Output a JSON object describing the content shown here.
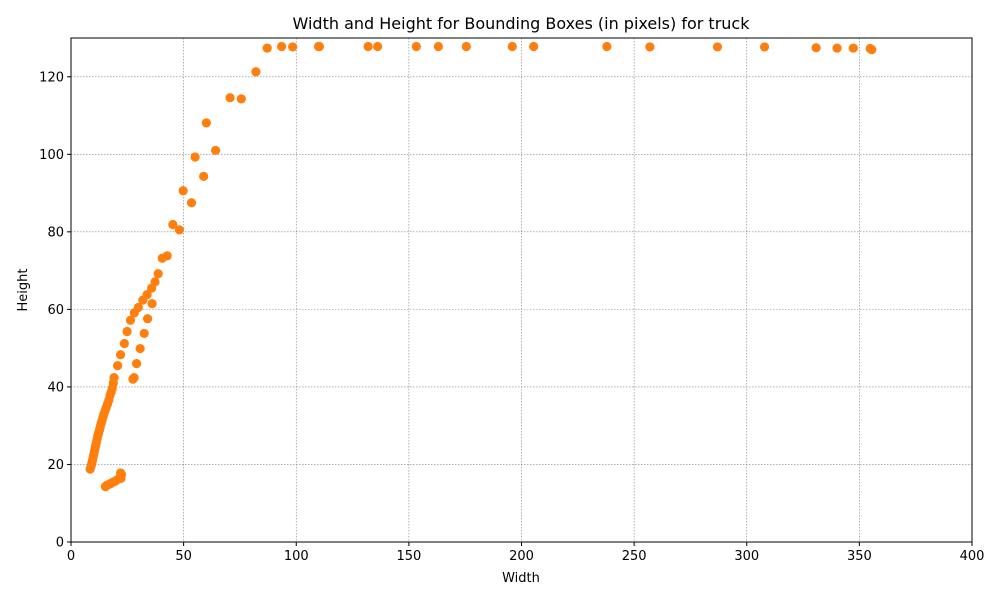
{
  "chart_data": {
    "type": "scatter",
    "title": "Width and Height for Bounding Boxes (in pixels) for truck",
    "xlabel": "Width",
    "ylabel": "Height",
    "xlim": [
      0,
      400
    ],
    "ylim": [
      0,
      130
    ],
    "xticks": [
      0,
      50,
      100,
      150,
      200,
      250,
      300,
      350,
      400
    ],
    "yticks": [
      0,
      20,
      40,
      60,
      80,
      100,
      120
    ],
    "grid": true,
    "marker_color": "#ff7f0e",
    "points": [
      [
        8.5,
        18.8
      ],
      [
        8.9,
        19.5
      ],
      [
        9.2,
        20.2
      ],
      [
        9.5,
        21.0
      ],
      [
        9.8,
        21.8
      ],
      [
        10.1,
        22.6
      ],
      [
        10.4,
        23.4
      ],
      [
        10.7,
        24.2
      ],
      [
        11.0,
        25.0
      ],
      [
        11.3,
        25.8
      ],
      [
        11.6,
        26.6
      ],
      [
        11.9,
        27.4
      ],
      [
        12.3,
        28.2
      ],
      [
        12.7,
        29.0
      ],
      [
        13.0,
        29.8
      ],
      [
        13.4,
        30.6
      ],
      [
        13.8,
        31.4
      ],
      [
        14.2,
        32.2
      ],
      [
        14.6,
        33.0
      ],
      [
        15.1,
        33.8
      ],
      [
        15.6,
        34.6
      ],
      [
        16.2,
        35.6
      ],
      [
        16.8,
        36.6
      ],
      [
        17.3,
        37.8
      ],
      [
        17.8,
        38.6
      ],
      [
        18.3,
        39.6
      ],
      [
        18.8,
        41.0
      ],
      [
        19.1,
        42.4
      ],
      [
        20.7,
        45.5
      ],
      [
        22.0,
        48.3
      ],
      [
        23.7,
        51.2
      ],
      [
        24.9,
        54.3
      ],
      [
        26.4,
        57.2
      ],
      [
        28.1,
        59.1
      ],
      [
        29.9,
        60.5
      ],
      [
        31.9,
        62.4
      ],
      [
        33.8,
        63.8
      ],
      [
        35.8,
        65.5
      ],
      [
        37.3,
        67.1
      ],
      [
        38.7,
        69.2
      ],
      [
        40.5,
        73.2
      ],
      [
        42.7,
        73.8
      ],
      [
        36.0,
        61.5
      ],
      [
        34.0,
        57.6
      ],
      [
        32.5,
        53.8
      ],
      [
        30.7,
        49.9
      ],
      [
        29.1,
        46.0
      ],
      [
        27.5,
        42.0
      ],
      [
        28.0,
        42.4
      ],
      [
        45.2,
        81.9
      ],
      [
        48.1,
        80.5
      ],
      [
        49.8,
        90.6
      ],
      [
        53.5,
        87.5
      ],
      [
        55.1,
        99.3
      ],
      [
        58.9,
        94.3
      ],
      [
        60.1,
        108.1
      ],
      [
        64.2,
        101.0
      ],
      [
        70.6,
        114.6
      ],
      [
        75.6,
        114.3
      ],
      [
        82.1,
        121.3
      ],
      [
        87.1,
        127.4
      ],
      [
        93.5,
        127.8
      ],
      [
        98.4,
        127.7
      ],
      [
        109.9,
        127.8
      ],
      [
        110.3,
        127.8
      ],
      [
        131.9,
        127.8
      ],
      [
        136.1,
        127.8
      ],
      [
        153.3,
        127.8
      ],
      [
        163.1,
        127.8
      ],
      [
        175.5,
        127.8
      ],
      [
        195.9,
        127.8
      ],
      [
        205.4,
        127.8
      ],
      [
        237.9,
        127.8
      ],
      [
        257.0,
        127.7
      ],
      [
        287.0,
        127.7
      ],
      [
        307.9,
        127.7
      ],
      [
        330.8,
        127.5
      ],
      [
        340.1,
        127.4
      ],
      [
        347.3,
        127.4
      ],
      [
        354.8,
        127.3
      ],
      [
        355.5,
        127.0
      ],
      [
        15.3,
        14.3
      ],
      [
        15.9,
        14.6
      ],
      [
        16.6,
        14.8
      ],
      [
        17.4,
        15.0
      ],
      [
        18.2,
        15.3
      ],
      [
        19.0,
        15.5
      ],
      [
        19.9,
        15.8
      ],
      [
        20.9,
        16.2
      ],
      [
        22.2,
        16.4
      ],
      [
        22.4,
        17.4
      ],
      [
        22.0,
        17.8
      ]
    ]
  }
}
